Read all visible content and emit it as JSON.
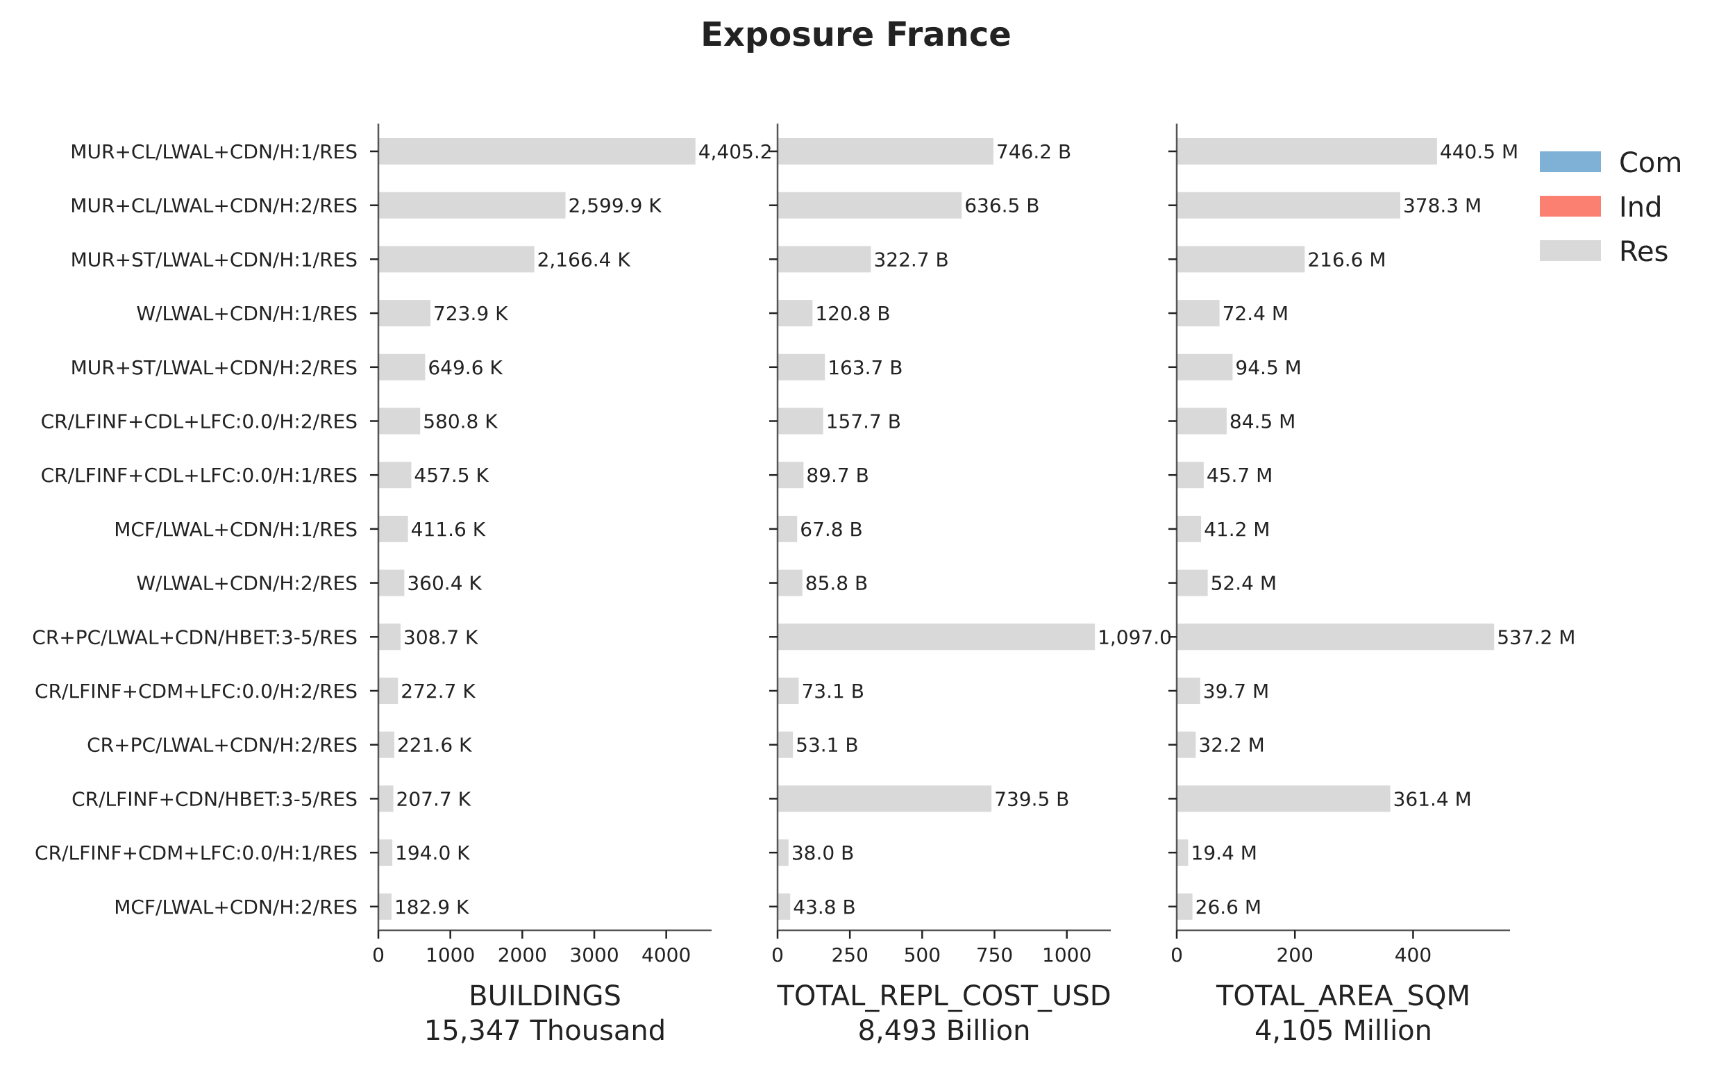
{
  "chart_data": {
    "type": "bar",
    "orientation": "horizontal",
    "title": "Exposure France",
    "categories": [
      "MUR+CL/LWAL+CDN/H:1/RES",
      "MUR+CL/LWAL+CDN/H:2/RES",
      "MUR+ST/LWAL+CDN/H:1/RES",
      "W/LWAL+CDN/H:1/RES",
      "MUR+ST/LWAL+CDN/H:2/RES",
      "CR/LFINF+CDL+LFC:0.0/H:2/RES",
      "CR/LFINF+CDL+LFC:0.0/H:1/RES",
      "MCF/LWAL+CDN/H:1/RES",
      "W/LWAL+CDN/H:2/RES",
      "CR+PC/LWAL+CDN/HBET:3-5/RES",
      "CR/LFINF+CDM+LFC:0.0/H:2/RES",
      "CR+PC/LWAL+CDN/H:2/RES",
      "CR/LFINF+CDN/HBET:3-5/RES",
      "CR/LFINF+CDM+LFC:0.0/H:1/RES",
      "MCF/LWAL+CDN/H:2/RES"
    ],
    "legend": {
      "placement": "top-right",
      "entries": [
        {
          "name": "Com",
          "color": "#7fb1d6"
        },
        {
          "name": "Ind",
          "color": "#fb8072"
        },
        {
          "name": "Res",
          "color": "#d9d9d9"
        }
      ]
    },
    "grid": false,
    "panels": [
      {
        "xlabel": "BUILDINGS",
        "xlabel_total": "15,347 Thousand",
        "xlim": [
          0,
          4630
        ],
        "xticks": [
          0,
          1000,
          2000,
          3000,
          4000
        ],
        "series": [
          {
            "name": "Res",
            "values": [
              4405.2,
              2599.9,
              2166.4,
              723.9,
              649.6,
              580.8,
              457.5,
              411.6,
              360.4,
              308.7,
              272.7,
              221.6,
              207.7,
              194.0,
              182.9
            ]
          }
        ],
        "value_labels": [
          "4,405.2",
          "2,599.9 K",
          "2,166.4 K",
          "723.9 K",
          "649.6 K",
          "580.8 K",
          "457.5 K",
          "411.6 K",
          "360.4 K",
          "308.7 K",
          "272.7 K",
          "221.6 K",
          "207.7 K",
          "194.0 K",
          "182.9 K"
        ]
      },
      {
        "xlabel": "TOTAL_REPL_COST_USD",
        "xlabel_total": "8,493 Billion",
        "xlim": [
          0,
          1152
        ],
        "xticks": [
          0,
          250,
          500,
          750,
          1000
        ],
        "series": [
          {
            "name": "Res",
            "values": [
              746.2,
              636.5,
              322.7,
              120.8,
              163.7,
              157.7,
              89.7,
              67.8,
              85.8,
              1097.0,
              73.1,
              53.1,
              739.5,
              38.0,
              43.8
            ]
          }
        ],
        "value_labels": [
          "746.2 B",
          "636.5 B",
          "322.7 B",
          "120.8 B",
          "163.7 B",
          "157.7 B",
          "89.7 B",
          "67.8 B",
          "85.8 B",
          "1,097.0",
          "73.1 B",
          "53.1 B",
          "739.5 B",
          "38.0 B",
          "43.8 B"
        ]
      },
      {
        "xlabel": "TOTAL_AREA_SQM",
        "xlabel_total": "4,105 Million",
        "xlim": [
          0,
          564
        ],
        "xticks": [
          0,
          200,
          400
        ],
        "series": [
          {
            "name": "Res",
            "values": [
              440.5,
              378.3,
              216.6,
              72.4,
              94.5,
              84.5,
              45.7,
              41.2,
              52.4,
              537.2,
              39.7,
              32.2,
              361.4,
              19.4,
              26.6
            ]
          }
        ],
        "value_labels": [
          "440.5 M",
          "378.3 M",
          "216.6 M",
          "72.4 M",
          "94.5 M",
          "84.5 M",
          "45.7 M",
          "41.2 M",
          "52.4 M",
          "537.2 M",
          "39.7 M",
          "32.2 M",
          "361.4 M",
          "19.4 M",
          "26.6 M"
        ]
      }
    ]
  }
}
